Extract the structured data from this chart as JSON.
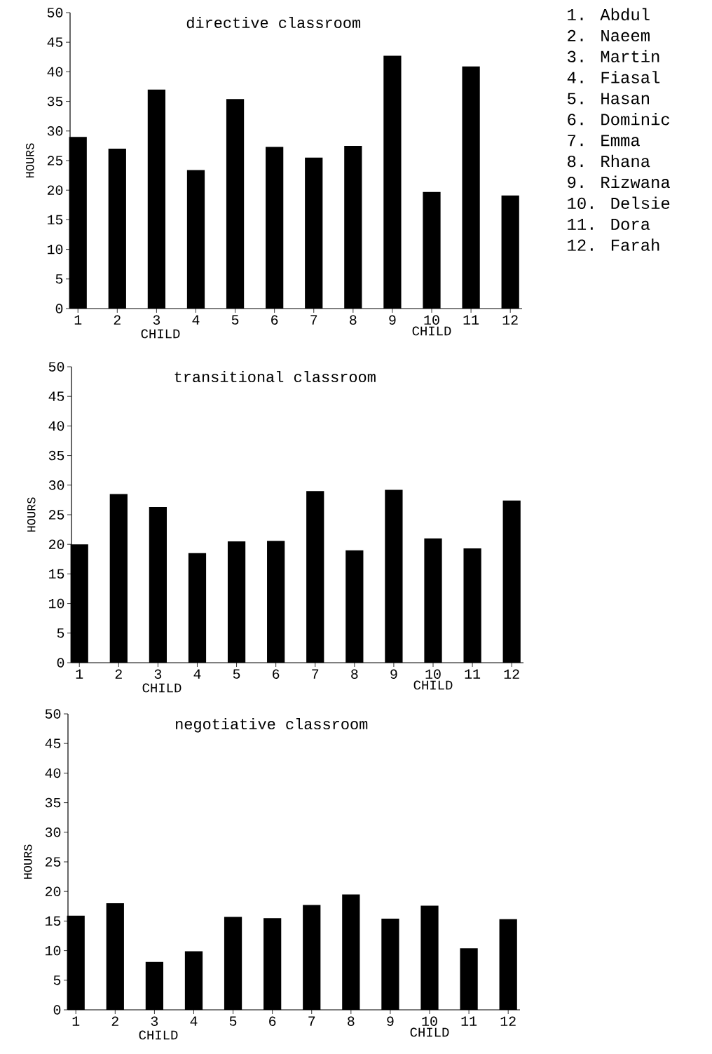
{
  "chart_data": [
    {
      "type": "bar",
      "title": "directive classroom",
      "xlabel": "CHILD",
      "ylabel": "HOURS",
      "annotations": [
        "CHILD"
      ],
      "categories": [
        "1",
        "2",
        "3",
        "4",
        "5",
        "6",
        "7",
        "8",
        "9",
        "10",
        "11",
        "12"
      ],
      "values": [
        29,
        27,
        37,
        23.4,
        35.4,
        27.3,
        25.5,
        27.5,
        42.7,
        19.7,
        40.9,
        19.1
      ],
      "color": "#000000",
      "ylim": [
        0,
        50
      ],
      "yticks": [
        0,
        5,
        10,
        15,
        20,
        25,
        30,
        35,
        40,
        45,
        50
      ]
    },
    {
      "type": "bar",
      "title": "transitional classroom",
      "xlabel": "CHILD",
      "ylabel": "HOURS",
      "annotations": [
        "CHILD"
      ],
      "categories": [
        "1",
        "2",
        "3",
        "4",
        "5",
        "6",
        "7",
        "8",
        "9",
        "10",
        "11",
        "12"
      ],
      "values": [
        20,
        28.5,
        26.3,
        18.5,
        20.5,
        20.6,
        29,
        19,
        29.2,
        21,
        19.3,
        27.4
      ],
      "color": "#000000",
      "ylim": [
        0,
        50
      ],
      "yticks": [
        0,
        5,
        10,
        15,
        20,
        25,
        30,
        35,
        40,
        45,
        50
      ]
    },
    {
      "type": "bar",
      "title": "negotiative classroom",
      "xlabel": "CHILD",
      "ylabel": "HOURS",
      "annotations": [
        "CHILD"
      ],
      "categories": [
        "1",
        "2",
        "3",
        "4",
        "5",
        "6",
        "7",
        "8",
        "9",
        "10",
        "11",
        "12"
      ],
      "values": [
        15.9,
        18,
        8.1,
        9.9,
        15.7,
        15.5,
        17.7,
        19.5,
        15.4,
        17.6,
        10.4,
        15.3
      ],
      "color": "#000000",
      "ylim": [
        0,
        50
      ],
      "yticks": [
        0,
        5,
        10,
        15,
        20,
        25,
        30,
        35,
        40,
        45,
        50
      ]
    },
    {
      "type": "other",
      "annotations": [
        "1. Abdul",
        "2. Naeem",
        "3. Martin",
        "4. Fiasal",
        "5. Hasan",
        "6. Dominic",
        "7. Emma",
        "8. Rhana",
        "9. Rizwana",
        "10. Delsie",
        "11. Dora",
        "12. Farah"
      ]
    }
  ]
}
